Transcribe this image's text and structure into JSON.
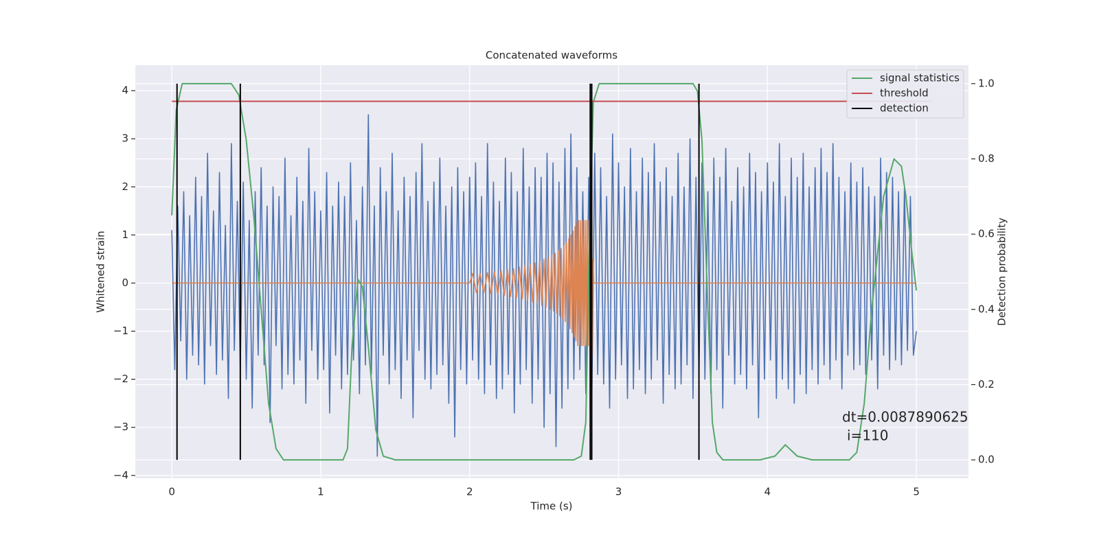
{
  "chart_data": {
    "type": "line",
    "title": "Concatenated waveforms",
    "xlabel": "Time (s)",
    "ylabel": "Whitened strain",
    "y2label": "Detection probability",
    "xlim": [
      -0.245,
      5.35
    ],
    "ylim": [
      -4.06,
      4.53
    ],
    "y2lim": [
      -0.049,
      1.049
    ],
    "xticks": [
      0,
      1,
      2,
      3,
      4,
      5
    ],
    "yticks": [
      {
        "value": -4,
        "label": "−4"
      },
      {
        "value": -3,
        "label": "−3"
      },
      {
        "value": -2,
        "label": "−2"
      },
      {
        "value": -1,
        "label": "−1"
      },
      0,
      1,
      2,
      3,
      4
    ],
    "y2ticks": [
      {
        "value": 0,
        "label": "0.0"
      },
      {
        "value": 0.2,
        "label": "0.2"
      },
      {
        "value": 0.4,
        "label": "0.4"
      },
      {
        "value": 0.6,
        "label": "0.6"
      },
      {
        "value": 0.8,
        "label": "0.8"
      },
      {
        "value": 1.0,
        "label": "1.0"
      }
    ],
    "grid": true,
    "legend": "upper right",
    "annotation": [
      "dt=0.0087890625",
      "i=110"
    ],
    "series": [
      {
        "color": "#4c72b0",
        "axis": "y",
        "x": [
          0,
          0.02,
          0.04,
          0.06,
          0.08,
          0.1,
          0.12,
          0.14,
          0.16,
          0.18,
          0.2,
          0.22,
          0.24,
          0.26,
          0.28,
          0.3,
          0.32,
          0.34,
          0.36,
          0.38,
          0.4,
          0.42,
          0.44,
          0.46,
          0.48,
          0.5,
          0.52,
          0.54,
          0.56,
          0.58,
          0.6,
          0.62,
          0.64,
          0.66,
          0.68,
          0.7,
          0.72,
          0.74,
          0.76,
          0.78,
          0.8,
          0.82,
          0.84,
          0.86,
          0.88,
          0.9,
          0.92,
          0.94,
          0.96,
          0.98,
          1,
          1.02,
          1.04,
          1.06,
          1.08,
          1.1,
          1.12,
          1.14,
          1.16,
          1.18,
          1.2,
          1.22,
          1.24,
          1.26,
          1.28,
          1.3,
          1.32,
          1.34,
          1.36,
          1.38,
          1.4,
          1.42,
          1.44,
          1.46,
          1.48,
          1.5,
          1.52,
          1.54,
          1.56,
          1.58,
          1.6,
          1.62,
          1.64,
          1.66,
          1.68,
          1.7,
          1.72,
          1.74,
          1.76,
          1.78,
          1.8,
          1.82,
          1.84,
          1.86,
          1.88,
          1.9,
          1.92,
          1.94,
          1.96,
          1.98,
          2,
          2.02,
          2.04,
          2.06,
          2.08,
          2.1,
          2.12,
          2.14,
          2.16,
          2.18,
          2.2,
          2.22,
          2.24,
          2.26,
          2.28,
          2.3,
          2.32,
          2.34,
          2.36,
          2.38,
          2.4,
          2.42,
          2.44,
          2.46,
          2.48,
          2.5,
          2.52,
          2.54,
          2.56,
          2.58,
          2.6,
          2.62,
          2.64,
          2.66,
          2.68,
          2.7,
          2.72,
          2.74,
          2.76,
          2.78,
          2.8,
          2.82,
          2.84,
          2.86,
          2.88,
          2.9,
          2.92,
          2.94,
          2.96,
          2.98,
          3,
          3.02,
          3.04,
          3.06,
          3.08,
          3.1,
          3.12,
          3.14,
          3.16,
          3.18,
          3.2,
          3.22,
          3.24,
          3.26,
          3.28,
          3.3,
          3.32,
          3.34,
          3.36,
          3.38,
          3.4,
          3.42,
          3.44,
          3.46,
          3.48,
          3.5,
          3.52,
          3.54,
          3.56,
          3.58,
          3.6,
          3.62,
          3.64,
          3.66,
          3.68,
          3.7,
          3.72,
          3.74,
          3.76,
          3.78,
          3.8,
          3.82,
          3.84,
          3.86,
          3.88,
          3.9,
          3.92,
          3.94,
          3.96,
          3.98,
          4,
          4.02,
          4.04,
          4.06,
          4.08,
          4.1,
          4.12,
          4.14,
          4.16,
          4.18,
          4.2,
          4.22,
          4.24,
          4.26,
          4.28,
          4.3,
          4.32,
          4.34,
          4.36,
          4.38,
          4.4,
          4.42,
          4.44,
          4.46,
          4.48,
          4.5,
          4.52,
          4.54,
          4.56,
          4.58,
          4.6,
          4.62,
          4.64,
          4.66,
          4.68,
          4.7,
          4.72,
          4.74,
          4.76,
          4.78,
          4.8,
          4.82,
          4.84,
          4.86,
          4.88,
          4.9,
          4.92,
          4.94,
          4.96,
          4.98,
          5
        ],
        "values": [
          1.1,
          -1.8,
          1.6,
          -1.2,
          1.9,
          -2.0,
          1.4,
          -1.5,
          2.2,
          -1.7,
          1.8,
          -2.1,
          2.7,
          -1.3,
          1.5,
          -1.9,
          2.3,
          -1.6,
          1.2,
          -2.4,
          2.9,
          -1.4,
          1.7,
          -1.8,
          2.1,
          -2.0,
          1.3,
          -2.6,
          1.9,
          -1.5,
          2.4,
          -1.7,
          1.6,
          -2.9,
          2.0,
          -1.3,
          1.8,
          -2.2,
          2.6,
          -1.9,
          1.4,
          -2.1,
          2.2,
          -1.6,
          1.7,
          -2.5,
          2.8,
          -1.4,
          1.9,
          -2.0,
          1.5,
          -1.8,
          2.3,
          -2.7,
          1.6,
          -1.5,
          2.1,
          -2.2,
          1.8,
          -1.9,
          2.5,
          -1.6,
          1.3,
          -2.3,
          2.0,
          -1.7,
          3.5,
          -1.9,
          1.6,
          -3.6,
          2.4,
          -1.5,
          1.9,
          -2.1,
          2.7,
          -1.8,
          1.5,
          -2.4,
          2.2,
          -1.6,
          1.8,
          -2.8,
          2.3,
          -1.4,
          2.9,
          -2.0,
          1.7,
          -2.2,
          2.1,
          -1.9,
          2.6,
          -1.7,
          1.6,
          -2.5,
          2.0,
          -3.2,
          2.4,
          -1.8,
          1.9,
          -2.1,
          2.2,
          -1.6,
          2.5,
          -2.0,
          1.8,
          -2.3,
          2.9,
          -1.7,
          2.1,
          -2.4,
          1.7,
          -2.2,
          2.6,
          -1.9,
          2.3,
          -2.7,
          1.9,
          -2.1,
          2.8,
          -1.8,
          2.0,
          -2.5,
          2.4,
          -2.0,
          2.2,
          -3.0,
          2.7,
          -2.3,
          2.5,
          -3.4,
          2.1,
          -2.6,
          2.8,
          -2.2,
          3.1,
          -2.0,
          2.4,
          -1.8,
          1.9,
          -2.3,
          2.2,
          -2.5,
          2.7,
          -1.9,
          2.4,
          -2.1,
          1.8,
          -2.6,
          3.1,
          -2.0,
          2.5,
          -1.7,
          2.0,
          -2.4,
          2.8,
          -2.2,
          1.9,
          -1.8,
          2.6,
          -2.3,
          2.3,
          -2.0,
          2.9,
          -1.6,
          2.1,
          -2.5,
          2.4,
          -1.9,
          1.8,
          -2.2,
          2.7,
          -2.1,
          2.0,
          -1.7,
          3.0,
          -2.4,
          2.2,
          -1.9,
          2.5,
          -2.0,
          1.9,
          -2.3,
          2.6,
          -1.8,
          2.2,
          -2.6,
          2.8,
          -1.5,
          1.7,
          -2.1,
          2.4,
          -1.9,
          2.0,
          -2.2,
          2.7,
          -1.7,
          2.3,
          -2.8,
          1.9,
          -2.0,
          2.5,
          -1.6,
          2.1,
          -2.4,
          2.9,
          -2.0,
          1.8,
          -2.2,
          2.6,
          -2.5,
          2.2,
          -1.9,
          2.7,
          -2.3,
          2.0,
          -1.8,
          2.4,
          -2.1,
          2.8,
          -1.7,
          2.3,
          -2.0,
          2.9,
          -1.6,
          2.2,
          -2.2,
          1.9,
          -1.5,
          2.5,
          -1.8,
          2.1,
          -1.7,
          2.4,
          -1.9,
          2.0,
          -1.6,
          1.8,
          -2.2,
          2.6,
          -1.5,
          2.3,
          -1.8,
          2.2,
          -1.6,
          1.9,
          -1.7,
          2.0,
          -1.4,
          1.8,
          -1.5,
          -1
        ]
      },
      {
        "color": "#dd8452",
        "axis": "y",
        "x": [
          0,
          2.0,
          2.02,
          2.045,
          2.07,
          2.095,
          2.12,
          2.143,
          2.166,
          2.189,
          2.211,
          2.233,
          2.254,
          2.275,
          2.295,
          2.315,
          2.334,
          2.353,
          2.371,
          2.389,
          2.406,
          2.423,
          2.439,
          2.455,
          2.47,
          2.485,
          2.499,
          2.513,
          2.526,
          2.539,
          2.551,
          2.563,
          2.574,
          2.585,
          2.595,
          2.605,
          2.615,
          2.624,
          2.633,
          2.642,
          2.65,
          2.658,
          2.666,
          2.674,
          2.681,
          2.688,
          2.695,
          2.702,
          2.708,
          2.714,
          2.72,
          2.726,
          2.732,
          2.738,
          2.744,
          2.75,
          2.756,
          2.762,
          2.768,
          2.774,
          2.78,
          2.786,
          2.792,
          2.798,
          2.804,
          2.81,
          2.816,
          2.822,
          2.828,
          2.834,
          5.0
        ],
        "values": [
          0,
          0,
          0.2,
          -0.2,
          0.2,
          -0.2,
          0.22,
          -0.22,
          0.24,
          -0.24,
          0.26,
          -0.26,
          0.28,
          -0.28,
          0.3,
          -0.3,
          0.33,
          -0.33,
          0.36,
          -0.36,
          0.39,
          -0.39,
          0.42,
          -0.42,
          0.46,
          -0.46,
          0.5,
          -0.5,
          0.54,
          -0.54,
          0.58,
          -0.58,
          0.62,
          -0.63,
          0.67,
          -0.68,
          0.72,
          -0.74,
          0.78,
          -0.8,
          0.85,
          -0.87,
          0.92,
          -0.95,
          1.0,
          -1.03,
          1.08,
          -1.12,
          1.17,
          -1.2,
          1.25,
          -1.3,
          1.3,
          -1.3,
          1.3,
          -1.3,
          1.3,
          -1.3,
          1.3,
          -1.3,
          1.3,
          -1.3,
          1.3,
          -1.3,
          1.3,
          -3.0,
          2.4,
          -1.5,
          0.5,
          0,
          0
        ]
      },
      {
        "name": "signal statistics",
        "color": "#55a868",
        "axis": "y2",
        "x": [
          0,
          0.03,
          0.07,
          0.4,
          0.45,
          0.5,
          0.55,
          0.6,
          0.65,
          0.7,
          0.75,
          1.15,
          1.18,
          1.21,
          1.25,
          1.28,
          1.32,
          1.37,
          1.42,
          1.5,
          2.7,
          2.75,
          2.78,
          2.8,
          2.83,
          2.87,
          3.5,
          3.53,
          3.56,
          3.6,
          3.63,
          3.66,
          3.7,
          3.95,
          4.05,
          4.12,
          4.2,
          4.3,
          4.55,
          4.6,
          4.65,
          4.7,
          4.78,
          4.85,
          4.9,
          4.93,
          4.97,
          5.0
        ],
        "values": [
          0.65,
          0.93,
          1.0,
          1.0,
          0.97,
          0.85,
          0.65,
          0.4,
          0.15,
          0.03,
          0.0,
          0.0,
          0.03,
          0.3,
          0.48,
          0.46,
          0.3,
          0.08,
          0.01,
          0.0,
          0.0,
          0.01,
          0.1,
          0.5,
          0.95,
          1.0,
          1.0,
          0.98,
          0.85,
          0.4,
          0.1,
          0.02,
          0.0,
          0.0,
          0.01,
          0.04,
          0.01,
          0.0,
          0.0,
          0.02,
          0.15,
          0.4,
          0.7,
          0.8,
          0.78,
          0.7,
          0.55,
          0.45
        ]
      },
      {
        "name": "threshold",
        "color": "#c44e52",
        "axis": "y2",
        "x": [
          0,
          5.1
        ],
        "values": [
          0.953,
          0.953
        ]
      },
      {
        "name": "detection",
        "color": "#000000",
        "axis": "y2",
        "mark": "vline",
        "x": [
          0.035,
          0.46,
          2.81,
          2.82,
          3.54
        ],
        "values": [
          1,
          1,
          1,
          1,
          1
        ]
      }
    ]
  }
}
